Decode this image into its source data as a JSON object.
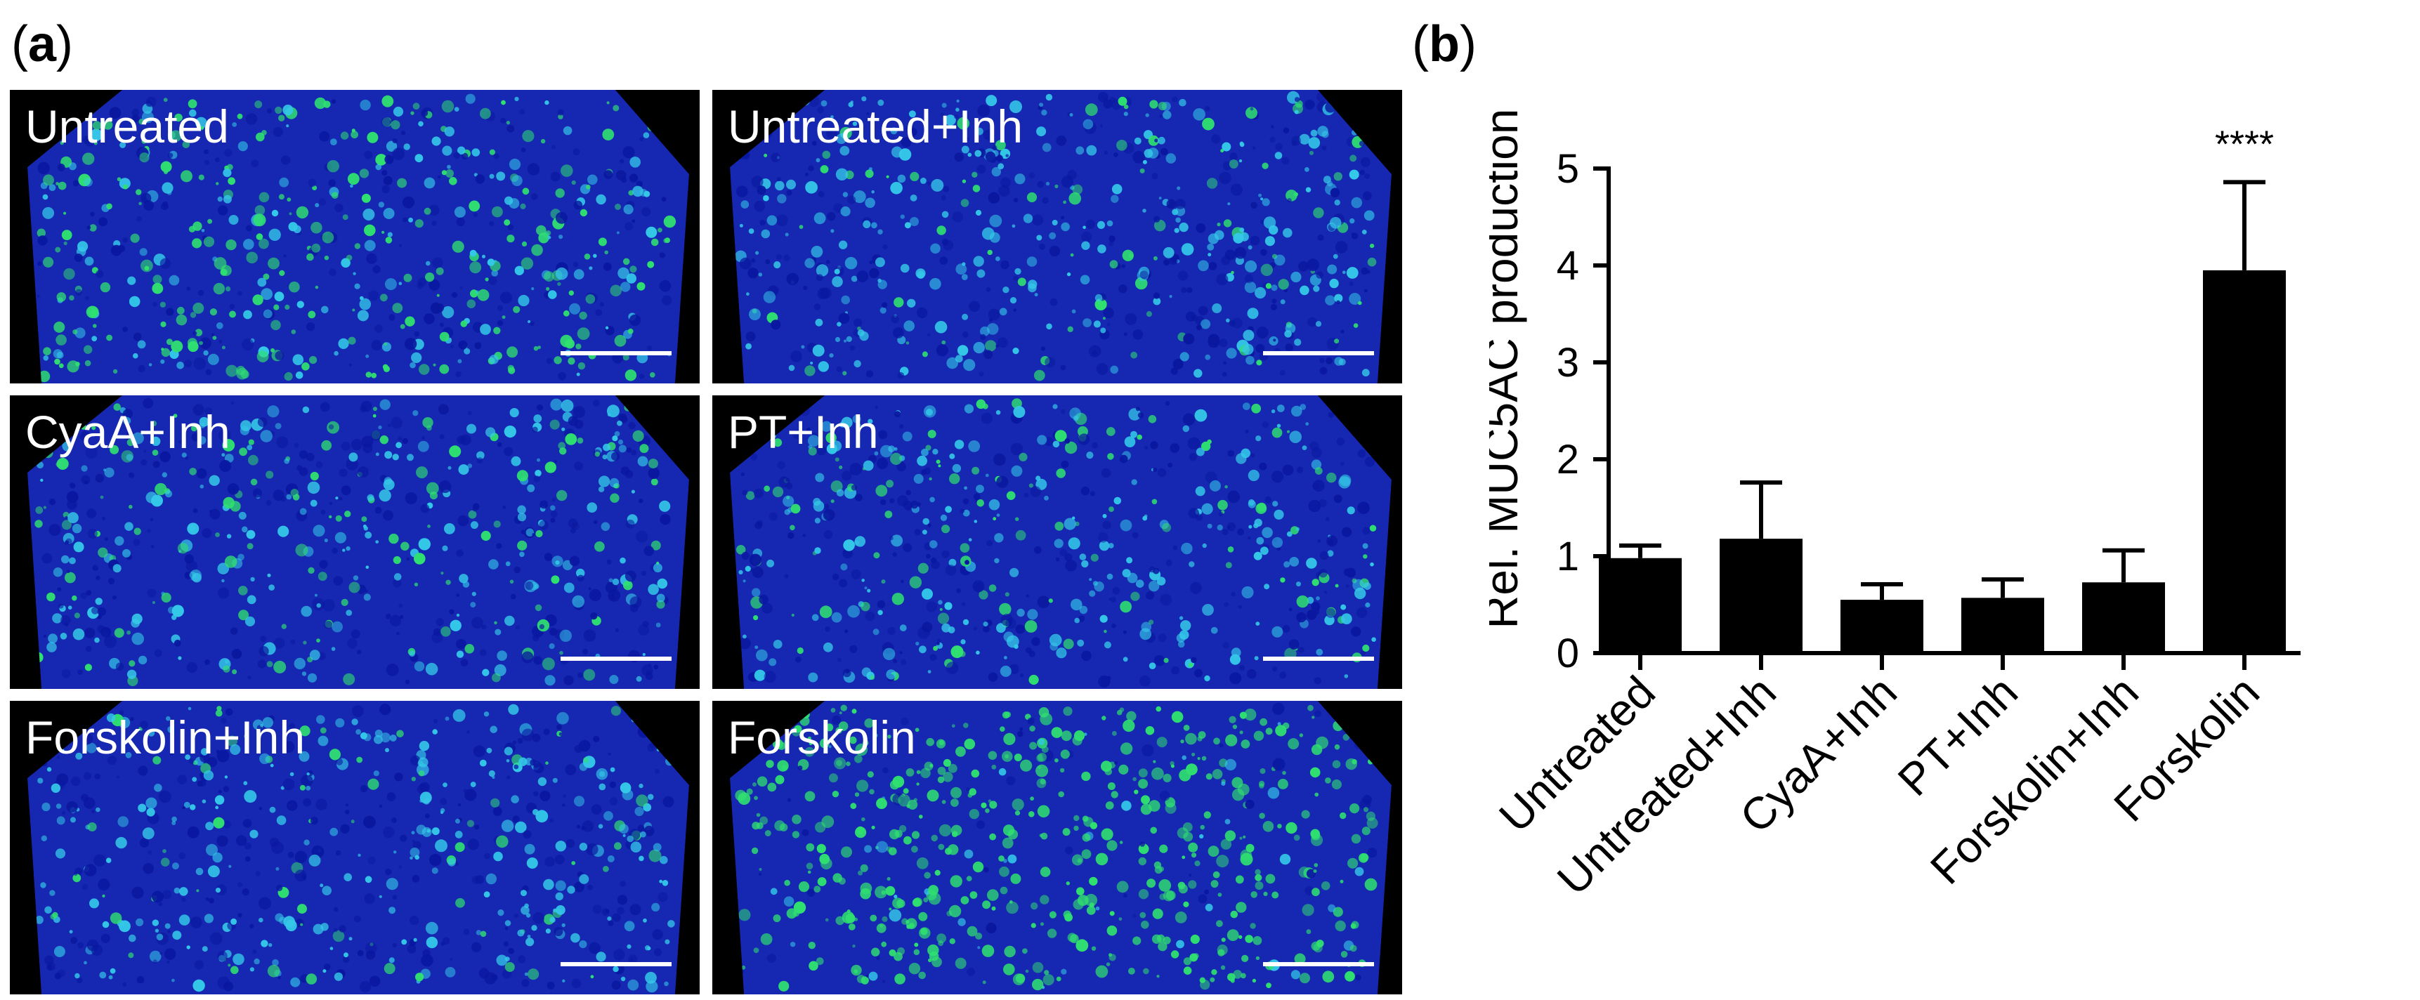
{
  "panels": {
    "a": "a",
    "b": "b"
  },
  "images": [
    {
      "label": "Untreated",
      "green_level": 0.45
    },
    {
      "label": "Untreated+Inh",
      "green_level": 0.15
    },
    {
      "label": "CyaA+Inh",
      "green_level": 0.2
    },
    {
      "label": "PT+Inh",
      "green_level": 0.2
    },
    {
      "label": "Forskolin+Inh",
      "green_level": 0.1
    },
    {
      "label": "Forskolin",
      "green_level": 0.85
    }
  ],
  "colors": {
    "nuclei": "#1a2fd0",
    "muc5ac": "#2fe070",
    "bar": "#000000"
  },
  "chart_data": {
    "type": "bar",
    "categories": [
      "Untreated",
      "Untreated+Inh",
      "CyaA+Inh",
      "PT+Inh",
      "Forskolin+Inh",
      "Forskolin"
    ],
    "values": [
      0.98,
      1.18,
      0.55,
      0.57,
      0.73,
      3.95
    ],
    "errors": [
      0.13,
      0.58,
      0.16,
      0.19,
      0.33,
      0.91
    ],
    "ylabel": "Rel. MUC5AC production",
    "ylim": [
      0,
      5
    ],
    "yticks": [
      0,
      1,
      2,
      3,
      4,
      5
    ],
    "annotations": [
      {
        "category": "Forskolin",
        "text": "****"
      }
    ],
    "grid": false
  }
}
